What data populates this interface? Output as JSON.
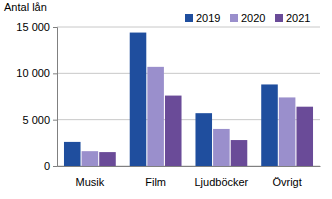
{
  "chart_data": {
    "type": "bar",
    "y_label": "Antal lån",
    "categories": [
      "Musik",
      "Film",
      "Ljudböcker",
      "Övrigt"
    ],
    "series": [
      {
        "name": "2019",
        "color": "#1f4e9e",
        "values": [
          2600,
          14400,
          5700,
          8800
        ]
      },
      {
        "name": "2020",
        "color": "#9a8fcc",
        "values": [
          1600,
          10700,
          4000,
          7400
        ]
      },
      {
        "name": "2021",
        "color": "#6a4b98",
        "values": [
          1500,
          7600,
          2800,
          6400
        ]
      }
    ],
    "ylim": [
      0,
      15000
    ],
    "yticks": [
      0,
      {
        "value": 5000,
        "label": "5 000"
      },
      {
        "value": 10000,
        "label": "10 000"
      },
      {
        "value": 15000,
        "label": "15 000"
      }
    ],
    "grid": true,
    "legend": "top-right"
  }
}
